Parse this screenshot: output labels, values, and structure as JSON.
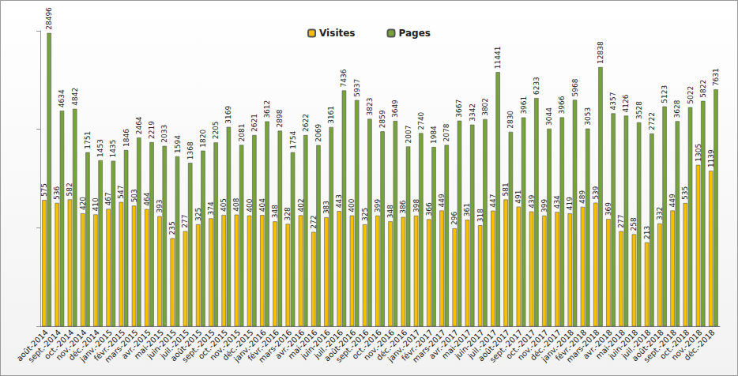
{
  "chart_data": {
    "type": "bar",
    "categories": [
      "août-2014",
      "sept.-2014",
      "oct.-2014",
      "nov.-2014",
      "déc.-2014",
      "janv.-2015",
      "févr.-2015",
      "mars-2015",
      "avr.-2015",
      "mai-2015",
      "juin-2015",
      "juil.-2015",
      "août-2015",
      "sept.-2015",
      "oct.-2015",
      "nov.-2015",
      "déc.-2015",
      "janv.-2016",
      "févr.-2016",
      "mars-2016",
      "avr.-2016",
      "mai-2016",
      "juin-2016",
      "juil.-2016",
      "août-2016",
      "sept.-2016",
      "oct.-2016",
      "nov.-2016",
      "déc.-2016",
      "janv.-2017",
      "févr.-2017",
      "mars-2017",
      "avr.-2017",
      "mai-2017",
      "juin-2017",
      "juil.-2017",
      "août-2017",
      "sept.-2017",
      "oct.-2017",
      "nov.-2017",
      "déc.-2017",
      "janv.-2018",
      "févr.-2018",
      "mars-2018",
      "avr.-2018",
      "mai-2018",
      "juin-2018",
      "juil.-2018",
      "août-2018",
      "sept.-2018",
      "oct.-2018",
      "nov.-2018",
      "déc.-2018"
    ],
    "series": [
      {
        "name": "Visites",
        "color": "#f5c000",
        "values": [
          575,
          536,
          582,
          420,
          410,
          467,
          547,
          503,
          464,
          393,
          235,
          277,
          325,
          374,
          405,
          408,
          400,
          404,
          348,
          328,
          402,
          272,
          383,
          443,
          400,
          325,
          399,
          348,
          386,
          398,
          366,
          449,
          296,
          361,
          318,
          447,
          581,
          491,
          439,
          399,
          434,
          419,
          489,
          539,
          369,
          277,
          258,
          213,
          332,
          449,
          535,
          1305,
          1139
        ]
      },
      {
        "name": "Pages",
        "color": "#77a33a",
        "values": [
          28496,
          4634,
          4842,
          1751,
          1453,
          1435,
          1846,
          2464,
          2219,
          2033,
          1594,
          1368,
          1820,
          2205,
          3169,
          2081,
          2621,
          3612,
          2898,
          1754,
          2622,
          2069,
          3161,
          7436,
          5937,
          3823,
          2859,
          3649,
          2007,
          2740,
          1984,
          2078,
          3667,
          3342,
          3802,
          11441,
          2830,
          3961,
          6233,
          3044,
          3966,
          5968,
          3053,
          12838,
          4357,
          4126,
          3528,
          2722,
          5123,
          3628,
          5022,
          5822,
          7631
        ]
      }
    ],
    "log": "y",
    "ylim": [
      30,
      30000
    ],
    "yticks": [
      100,
      1000,
      10000
    ],
    "grid": false,
    "legend": "top",
    "data_labels": true,
    "tick_labels": "x"
  }
}
